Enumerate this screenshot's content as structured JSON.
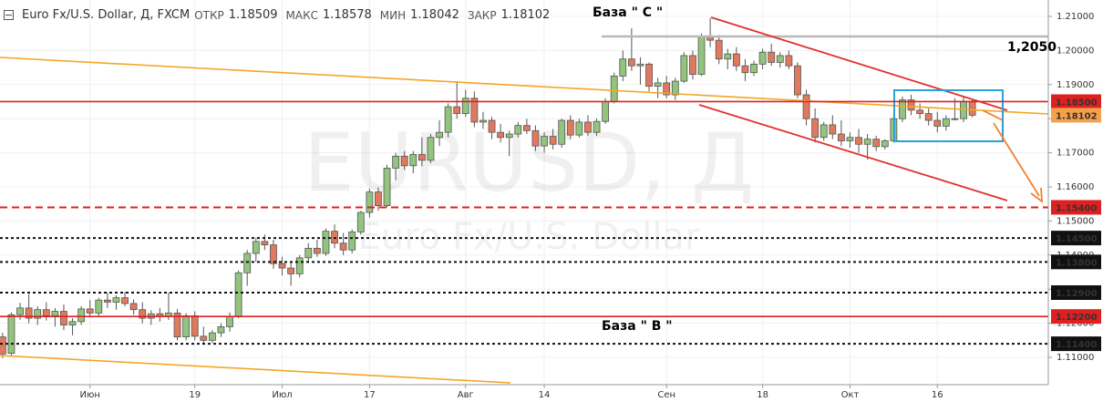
{
  "chart_data": {
    "type": "candlestick",
    "title": "Euro Fx/U.S. Dollar, Д, FXCM",
    "ohlc_labels": [
      "ОТКР",
      "МАКС",
      "МИН",
      "ЗАКР"
    ],
    "watermark": [
      "EURUSD, Д",
      "Euro Fx/U.S. Dollar"
    ],
    "annotations": [
      "База  \" C \"",
      "База  \" В \"",
      "1,2050"
    ],
    "up_color": "#93c47d",
    "down_color": "#e07a5f",
    "wick_color": "#555555",
    "price_tag_color": "#f5a04a",
    "grid": true,
    "open": [
      1.116,
      1.1112,
      1.1225,
      1.1245,
      1.1215,
      1.124,
      1.1222,
      1.1235,
      1.1195,
      1.1205,
      1.1242,
      1.123,
      1.1268,
      1.1262,
      1.1275,
      1.1258,
      1.124,
      1.1215,
      1.1228,
      1.122,
      1.123,
      1.116,
      1.1222,
      1.1162,
      1.115,
      1.1172,
      1.119,
      1.122,
      1.1348,
      1.1405,
      1.144,
      1.143,
      1.1375,
      1.1362,
      1.1345,
      1.1392,
      1.142,
      1.1405,
      1.147,
      1.1435,
      1.1415,
      1.1468,
      1.1525,
      1.1585,
      1.1545,
      1.1655,
      1.169,
      1.1662,
      1.1695,
      1.1678,
      1.1745,
      1.176,
      1.1835,
      1.1815,
      1.186,
      1.179,
      1.1795,
      1.176,
      1.1745,
      1.1755,
      1.178,
      1.1765,
      1.172,
      1.1748,
      1.1725,
      1.1795,
      1.1752,
      1.179,
      1.176,
      1.1792,
      1.185,
      1.1925,
      1.1975,
      1.1955,
      1.196,
      1.1895,
      1.1905,
      1.187,
      1.191,
      1.1985,
      1.193,
      1.204,
      1.203,
      1.1975,
      1.199,
      1.1955,
      1.1935,
      1.196,
      1.1995,
      1.1965,
      1.1985,
      1.1955,
      1.187,
      1.18,
      1.1745,
      1.1782,
      1.1755,
      1.1735,
      1.1745,
      1.1725,
      1.174,
      1.1718,
      1.1735,
      1.18,
      1.1855,
      1.1825,
      1.1815,
      1.1795,
      1.1778,
      1.18,
      1.18,
      1.18509
    ],
    "high": [
      1.1172,
      1.1232,
      1.126,
      1.1285,
      1.125,
      1.1262,
      1.1245,
      1.1255,
      1.1215,
      1.125,
      1.1268,
      1.1275,
      1.129,
      1.1282,
      1.1292,
      1.127,
      1.1262,
      1.1238,
      1.1245,
      1.129,
      1.1242,
      1.123,
      1.1235,
      1.119,
      1.118,
      1.12,
      1.1232,
      1.1355,
      1.1415,
      1.145,
      1.146,
      1.1445,
      1.1395,
      1.138,
      1.14,
      1.1435,
      1.1445,
      1.1478,
      1.149,
      1.1465,
      1.1475,
      1.153,
      1.1595,
      1.1598,
      1.1665,
      1.17,
      1.1705,
      1.1705,
      1.1745,
      1.1755,
      1.1795,
      1.1845,
      1.191,
      1.1885,
      1.188,
      1.182,
      1.1805,
      1.1785,
      1.1765,
      1.179,
      1.18,
      1.178,
      1.176,
      1.177,
      1.18,
      1.181,
      1.18,
      1.181,
      1.18,
      1.186,
      1.1935,
      1.2,
      1.2065,
      1.198,
      1.1965,
      1.192,
      1.1925,
      1.192,
      1.1995,
      1.2,
      1.205,
      1.2095,
      1.2045,
      1.2005,
      1.201,
      1.1975,
      1.197,
      1.2005,
      1.202,
      1.1995,
      1.2,
      1.1965,
      1.1885,
      1.183,
      1.179,
      1.181,
      1.1795,
      1.176,
      1.177,
      1.1755,
      1.175,
      1.174,
      1.181,
      1.1865,
      1.187,
      1.1845,
      1.183,
      1.182,
      1.181,
      1.186,
      1.1865,
      1.18578
    ],
    "low": [
      1.1098,
      1.1105,
      1.121,
      1.12,
      1.1195,
      1.1208,
      1.119,
      1.118,
      1.1165,
      1.1195,
      1.122,
      1.1222,
      1.1245,
      1.124,
      1.125,
      1.1225,
      1.12,
      1.1195,
      1.1205,
      1.121,
      1.115,
      1.115,
      1.115,
      1.114,
      1.1142,
      1.116,
      1.1175,
      1.1215,
      1.131,
      1.138,
      1.1415,
      1.136,
      1.134,
      1.131,
      1.1335,
      1.138,
      1.1395,
      1.1398,
      1.142,
      1.14,
      1.1405,
      1.146,
      1.151,
      1.153,
      1.154,
      1.162,
      1.165,
      1.164,
      1.166,
      1.167,
      1.172,
      1.1745,
      1.18,
      1.1805,
      1.1775,
      1.177,
      1.174,
      1.173,
      1.169,
      1.1745,
      1.1755,
      1.1705,
      1.17,
      1.171,
      1.1715,
      1.174,
      1.1745,
      1.175,
      1.175,
      1.1785,
      1.1845,
      1.191,
      1.194,
      1.19,
      1.188,
      1.186,
      1.186,
      1.1855,
      1.1905,
      1.1915,
      1.1925,
      1.201,
      1.196,
      1.1945,
      1.194,
      1.191,
      1.1925,
      1.1945,
      1.1955,
      1.195,
      1.1945,
      1.186,
      1.178,
      1.173,
      1.1735,
      1.174,
      1.172,
      1.1715,
      1.17,
      1.168,
      1.1705,
      1.171,
      1.173,
      1.179,
      1.181,
      1.18,
      1.178,
      1.176,
      1.1765,
      1.1795,
      1.179,
      1.18042
    ],
    "close": [
      1.111,
      1.1225,
      1.1245,
      1.1215,
      1.124,
      1.1222,
      1.1235,
      1.1195,
      1.1205,
      1.1242,
      1.123,
      1.1268,
      1.1262,
      1.1275,
      1.1258,
      1.124,
      1.1215,
      1.1228,
      1.122,
      1.123,
      1.116,
      1.1222,
      1.1162,
      1.115,
      1.1172,
      1.119,
      1.122,
      1.1348,
      1.1405,
      1.144,
      1.143,
      1.1375,
      1.1362,
      1.1345,
      1.1392,
      1.142,
      1.1405,
      1.147,
      1.1435,
      1.1415,
      1.1468,
      1.1525,
      1.1585,
      1.1545,
      1.1655,
      1.169,
      1.1662,
      1.1695,
      1.1678,
      1.1745,
      1.176,
      1.1835,
      1.1815,
      1.186,
      1.179,
      1.1795,
      1.176,
      1.1745,
      1.1755,
      1.178,
      1.1765,
      1.172,
      1.1748,
      1.1725,
      1.1795,
      1.1752,
      1.179,
      1.176,
      1.1792,
      1.185,
      1.1925,
      1.1975,
      1.1955,
      1.196,
      1.1895,
      1.1905,
      1.187,
      1.191,
      1.1985,
      1.193,
      1.204,
      1.203,
      1.1975,
      1.199,
      1.1955,
      1.1935,
      1.196,
      1.1995,
      1.1965,
      1.1985,
      1.1955,
      1.187,
      1.18,
      1.1745,
      1.1782,
      1.1755,
      1.1735,
      1.1745,
      1.1725,
      1.174,
      1.1718,
      1.1735,
      1.18,
      1.1855,
      1.1825,
      1.1815,
      1.1795,
      1.1778,
      1.18,
      1.18,
      1.1851,
      1.18102
    ],
    "xlim": [
      -0.3,
      119.7
    ],
    "xticks": [
      {
        "value": 10,
        "label": "Июн"
      },
      {
        "value": 22,
        "label": "19"
      },
      {
        "value": 32,
        "label": "Июл"
      },
      {
        "value": 42,
        "label": "17"
      },
      {
        "value": 53,
        "label": "Авг"
      },
      {
        "value": 62,
        "label": "14"
      },
      {
        "value": 76,
        "label": "Сен"
      },
      {
        "value": 87,
        "label": "18"
      },
      {
        "value": 97,
        "label": "Окт"
      },
      {
        "value": 107,
        "label": "16"
      }
    ],
    "ylim": [
      1.102,
      1.2148
    ],
    "yticks": [
      {
        "value": 1.11,
        "label": "1.11000"
      },
      {
        "value": 1.12,
        "label": "1.12000"
      },
      {
        "value": 1.13,
        "label": "1.13000"
      },
      {
        "value": 1.14,
        "label": "1.14000"
      },
      {
        "value": 1.15,
        "label": "1.15000"
      },
      {
        "value": 1.16,
        "label": "1.16000"
      },
      {
        "value": 1.17,
        "label": "1.17000"
      },
      {
        "value": 1.18,
        "label": "1.18000"
      },
      {
        "value": 1.19,
        "label": "1.19000"
      },
      {
        "value": 1.2,
        "label": "1.20000"
      },
      {
        "value": 1.21,
        "label": "1.21000"
      }
    ],
    "levels": [
      {
        "value": 1.185,
        "label": "1.18500",
        "color": "#e02020",
        "style": "solid"
      },
      {
        "value": 1.154,
        "label": "1.15400",
        "color": "#e02020",
        "style": "dashed"
      },
      {
        "value": 1.145,
        "label": "1.14500",
        "color": "#111111",
        "style": "dotted"
      },
      {
        "value": 1.138,
        "label": "1.13800",
        "color": "#111111",
        "style": "dotted"
      },
      {
        "value": 1.129,
        "label": "1.12900",
        "color": "#111111",
        "style": "dotted"
      },
      {
        "value": 1.122,
        "label": "1.12200",
        "color": "#e02020",
        "style": "solid"
      },
      {
        "value": 1.114,
        "label": "1.11400",
        "color": "#111111",
        "style": "dotted"
      }
    ]
  }
}
